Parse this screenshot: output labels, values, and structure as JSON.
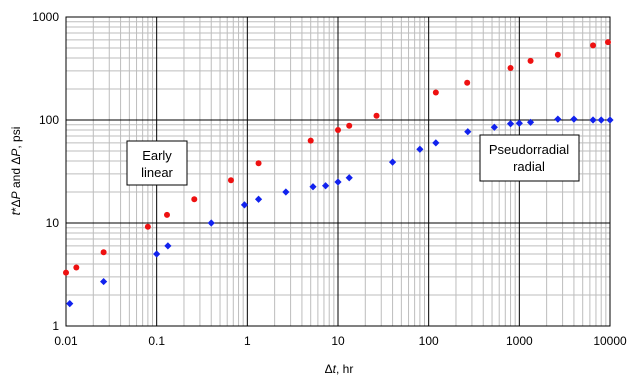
{
  "chart_data": {
    "type": "scatter",
    "xscale": "log",
    "yscale": "log",
    "xlim": [
      0.01,
      10000
    ],
    "ylim": [
      1,
      1000
    ],
    "grid": true,
    "xlabel": {
      "pre": "Δ",
      "var": "t",
      "post": ", hr"
    },
    "ylabel": {
      "v1": "t",
      "m1": "*Δ",
      "v2": "P",
      "m2": " and Δ",
      "v3": "P",
      "post": ", psi"
    },
    "xticks": [
      {
        "value": 0.01,
        "label": "0.01"
      },
      {
        "value": 0.1,
        "label": "0.1"
      },
      {
        "value": 1,
        "label": "1"
      },
      {
        "value": 10,
        "label": "10"
      },
      {
        "value": 100,
        "label": "100"
      },
      {
        "value": 1000,
        "label": "1000"
      },
      {
        "value": 10000,
        "label": "10000"
      }
    ],
    "yticks": [
      {
        "value": 1,
        "label": "1"
      },
      {
        "value": 10,
        "label": "10"
      },
      {
        "value": 100,
        "label": "100"
      },
      {
        "value": 1000,
        "label": "1000"
      }
    ],
    "series": [
      {
        "marker": "circle",
        "color": "#ee1111",
        "x": [
          0.01,
          0.013,
          0.026,
          0.08,
          0.13,
          0.26,
          0.66,
          1.33,
          5.0,
          10.0,
          13.3,
          26.6,
          120,
          266,
          800,
          1330,
          2660,
          6500,
          9500
        ],
        "y": [
          3.3,
          3.7,
          5.2,
          9.2,
          12.0,
          17.0,
          26.0,
          38.0,
          63.0,
          80.0,
          88.0,
          110.0,
          185.0,
          230.0,
          320.0,
          375.0,
          430.0,
          530.0,
          570.0
        ]
      },
      {
        "marker": "diamond",
        "color": "#1122ee",
        "x": [
          0.011,
          0.026,
          0.1,
          0.133,
          0.4,
          0.93,
          1.33,
          2.66,
          5.3,
          7.3,
          10.0,
          13.3,
          40,
          80,
          120,
          270,
          530,
          800,
          1000,
          1330,
          2660,
          4000,
          6500,
          8000,
          10000
        ],
        "y": [
          1.65,
          2.7,
          5.0,
          6.0,
          10.0,
          15.0,
          17.0,
          20.0,
          22.5,
          23.0,
          25.0,
          27.5,
          39.0,
          52.0,
          60.0,
          77.0,
          85.0,
          92.0,
          93.0,
          95.0,
          102.0,
          102.0,
          100.0,
          100.0,
          100.0
        ]
      }
    ],
    "annotations": [
      {
        "lines": [
          "Early",
          "linear"
        ]
      },
      {
        "lines": [
          "Pseudorradial",
          "radial"
        ]
      }
    ]
  }
}
